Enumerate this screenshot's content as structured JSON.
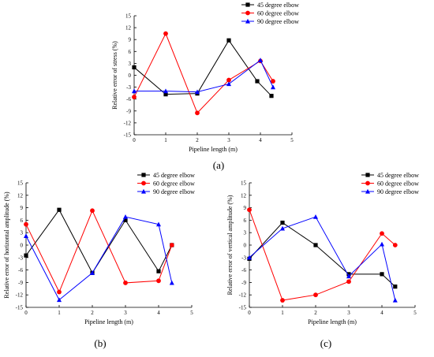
{
  "panel_labels": [
    "(a)",
    "(b)",
    "(c)"
  ],
  "colors": {
    "45 degree elbow": "#000000",
    "60 degree elbow": "#ff0000",
    "90 degree elbow": "#0000ff"
  },
  "chart_data": [
    {
      "type": "line",
      "panel": "(a)",
      "xlabel": "Pipeline length (m)",
      "ylabel": "Relative error of stress (%)",
      "xlim": [
        0,
        5
      ],
      "ylim": [
        -15,
        15
      ],
      "xticks": [
        0,
        1,
        2,
        3,
        4,
        5
      ],
      "yticks": [
        -15,
        -12,
        -9,
        -6,
        -3,
        0,
        3,
        6,
        9,
        12,
        15
      ],
      "legend": "top-right",
      "series": [
        {
          "name": "45 degree elbow",
          "marker": "square",
          "x": [
            0,
            1,
            2,
            3,
            3.9,
            4.35
          ],
          "y": [
            2,
            -4.8,
            -4.6,
            8.8,
            -1.5,
            -5.2
          ]
        },
        {
          "name": "60 degree elbow",
          "marker": "circle",
          "x": [
            0,
            1,
            2,
            3,
            4,
            4.4
          ],
          "y": [
            -5.5,
            10.5,
            -9.5,
            -1.2,
            3.6,
            -1.5
          ]
        },
        {
          "name": "90 degree elbow",
          "marker": "triangle",
          "x": [
            0,
            1,
            2,
            3,
            4,
            4.4
          ],
          "y": [
            -4,
            -4,
            -4.2,
            -2.2,
            3.8,
            -3
          ]
        }
      ]
    },
    {
      "type": "line",
      "panel": "(b)",
      "xlabel": "Pipeline length (m)",
      "ylabel": "Relative error of horizontal amplitude (%)",
      "xlim": [
        0,
        5
      ],
      "ylim": [
        -15,
        15
      ],
      "xticks": [
        0,
        1,
        2,
        3,
        4,
        5
      ],
      "yticks": [
        -15,
        -12,
        -9,
        -6,
        -3,
        0,
        3,
        6,
        9,
        12,
        15
      ],
      "legend": "top-right",
      "series": [
        {
          "name": "45 degree elbow",
          "marker": "square",
          "x": [
            0,
            1,
            2,
            3,
            4,
            4.4
          ],
          "y": [
            -2.5,
            8.5,
            -6.7,
            6,
            -6.3,
            0
          ]
        },
        {
          "name": "60 degree elbow",
          "marker": "circle",
          "x": [
            0,
            1,
            2,
            3,
            4,
            4.4
          ],
          "y": [
            5,
            -11.3,
            8.3,
            -9.1,
            -8.6,
            0
          ]
        },
        {
          "name": "90 degree elbow",
          "marker": "triangle",
          "x": [
            0,
            1,
            2,
            3,
            4,
            4.4
          ],
          "y": [
            2.2,
            -13.2,
            -6.7,
            6.8,
            5,
            -9.1
          ]
        }
      ]
    },
    {
      "type": "line",
      "panel": "(c)",
      "xlabel": "Pipeline length (m)",
      "ylabel": "Relative error of vertical amplitude (%)",
      "xlim": [
        0,
        5
      ],
      "ylim": [
        -15,
        15
      ],
      "xticks": [
        0,
        1,
        2,
        3,
        4,
        5
      ],
      "yticks": [
        -15,
        -12,
        -9,
        -6,
        -3,
        0,
        3,
        6,
        9,
        12,
        15
      ],
      "legend": "top-right",
      "series": [
        {
          "name": "45 degree elbow",
          "marker": "square",
          "x": [
            0,
            1,
            2,
            3,
            4,
            4.4
          ],
          "y": [
            -3.3,
            5.4,
            0,
            -7,
            -7,
            -10
          ]
        },
        {
          "name": "60 degree elbow",
          "marker": "circle",
          "x": [
            0,
            1,
            2,
            3,
            4,
            4.4
          ],
          "y": [
            8.5,
            -13.3,
            -12,
            -8.8,
            2.8,
            0
          ]
        },
        {
          "name": "90 degree elbow",
          "marker": "triangle",
          "x": [
            0,
            1,
            2,
            3,
            4,
            4.4
          ],
          "y": [
            -3,
            4,
            6.8,
            -7.5,
            0.2,
            -13.3
          ]
        }
      ]
    }
  ]
}
